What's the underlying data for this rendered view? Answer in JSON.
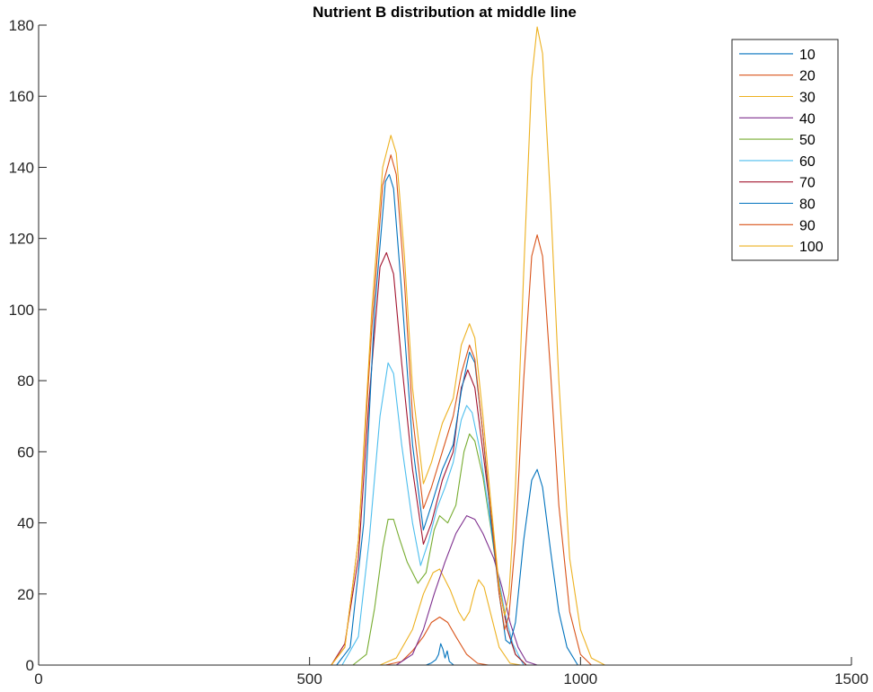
{
  "chart_data": {
    "type": "line",
    "title": "Nutrient B distribution at middle line",
    "xlabel": "",
    "ylabel": "",
    "xlim": [
      0,
      1500
    ],
    "ylim": [
      0,
      180
    ],
    "xticks": [
      0,
      500,
      1000,
      1500
    ],
    "yticks": [
      0,
      20,
      40,
      60,
      80,
      100,
      120,
      140,
      160,
      180
    ],
    "grid": false,
    "legend_position": "top-right",
    "series": [
      {
        "name": "10",
        "color": "#0072BD",
        "points": [
          [
            0,
            0
          ],
          [
            715,
            0
          ],
          [
            725,
            0.6
          ],
          [
            733,
            1.5
          ],
          [
            738,
            3
          ],
          [
            742,
            6
          ],
          [
            746,
            4.5
          ],
          [
            750,
            2
          ],
          [
            754,
            4
          ],
          [
            758,
            1
          ],
          [
            766,
            0
          ],
          [
            1500,
            0
          ]
        ]
      },
      {
        "name": "20",
        "color": "#D95319",
        "points": [
          [
            0,
            0
          ],
          [
            640,
            0
          ],
          [
            670,
            1
          ],
          [
            690,
            4
          ],
          [
            710,
            8
          ],
          [
            725,
            12
          ],
          [
            740,
            13.5
          ],
          [
            755,
            12
          ],
          [
            770,
            8
          ],
          [
            790,
            3
          ],
          [
            810,
            0.5
          ],
          [
            830,
            0
          ],
          [
            1500,
            0
          ]
        ]
      },
      {
        "name": "30",
        "color": "#EDB120",
        "points": [
          [
            0,
            0
          ],
          [
            630,
            0
          ],
          [
            660,
            2
          ],
          [
            690,
            10
          ],
          [
            710,
            20
          ],
          [
            728,
            26
          ],
          [
            740,
            27
          ],
          [
            760,
            21
          ],
          [
            775,
            15
          ],
          [
            785,
            12.5
          ],
          [
            795,
            15
          ],
          [
            805,
            21
          ],
          [
            812,
            24
          ],
          [
            822,
            22
          ],
          [
            835,
            14
          ],
          [
            850,
            5
          ],
          [
            870,
            0.5
          ],
          [
            890,
            0
          ],
          [
            1500,
            0
          ]
        ]
      },
      {
        "name": "40",
        "color": "#7E2F8E",
        "points": [
          [
            0,
            0
          ],
          [
            660,
            0
          ],
          [
            690,
            3
          ],
          [
            710,
            10
          ],
          [
            730,
            20
          ],
          [
            750,
            29
          ],
          [
            770,
            37
          ],
          [
            790,
            42
          ],
          [
            805,
            41
          ],
          [
            820,
            37
          ],
          [
            840,
            30
          ],
          [
            855,
            22
          ],
          [
            870,
            12
          ],
          [
            885,
            5
          ],
          [
            900,
            1
          ],
          [
            920,
            0
          ],
          [
            1500,
            0
          ]
        ]
      },
      {
        "name": "50",
        "color": "#77AC30",
        "points": [
          [
            0,
            0
          ],
          [
            580,
            0
          ],
          [
            605,
            3
          ],
          [
            620,
            16
          ],
          [
            635,
            33
          ],
          [
            645,
            41
          ],
          [
            655,
            41
          ],
          [
            665,
            36
          ],
          [
            680,
            29
          ],
          [
            700,
            23
          ],
          [
            715,
            26
          ],
          [
            730,
            38
          ],
          [
            740,
            42
          ],
          [
            755,
            40
          ],
          [
            770,
            45
          ],
          [
            785,
            60
          ],
          [
            795,
            65
          ],
          [
            805,
            63
          ],
          [
            820,
            53
          ],
          [
            835,
            38
          ],
          [
            850,
            22
          ],
          [
            865,
            10
          ],
          [
            880,
            3
          ],
          [
            900,
            0
          ],
          [
            1500,
            0
          ]
        ]
      },
      {
        "name": "60",
        "color": "#4DBEEE",
        "points": [
          [
            0,
            0
          ],
          [
            560,
            0
          ],
          [
            590,
            8
          ],
          [
            610,
            35
          ],
          [
            630,
            70
          ],
          [
            645,
            85
          ],
          [
            655,
            82
          ],
          [
            670,
            62
          ],
          [
            690,
            40
          ],
          [
            705,
            28
          ],
          [
            720,
            35
          ],
          [
            735,
            44
          ],
          [
            750,
            50
          ],
          [
            765,
            57
          ],
          [
            780,
            69
          ],
          [
            790,
            73
          ],
          [
            800,
            71
          ],
          [
            815,
            60
          ],
          [
            830,
            44
          ],
          [
            845,
            28
          ],
          [
            860,
            15
          ],
          [
            875,
            6
          ],
          [
            895,
            0
          ],
          [
            1500,
            0
          ]
        ]
      },
      {
        "name": "70",
        "color": "#A2142F",
        "points": [
          [
            0,
            0
          ],
          [
            540,
            0
          ],
          [
            565,
            6
          ],
          [
            590,
            30
          ],
          [
            610,
            75
          ],
          [
            630,
            112
          ],
          [
            642,
            116
          ],
          [
            655,
            110
          ],
          [
            670,
            85
          ],
          [
            690,
            55
          ],
          [
            710,
            34
          ],
          [
            725,
            40
          ],
          [
            745,
            52
          ],
          [
            765,
            60
          ],
          [
            780,
            78
          ],
          [
            792,
            83
          ],
          [
            805,
            78
          ],
          [
            820,
            60
          ],
          [
            835,
            42
          ],
          [
            850,
            22
          ],
          [
            865,
            10
          ],
          [
            880,
            3
          ],
          [
            900,
            0
          ],
          [
            1500,
            0
          ]
        ]
      },
      {
        "name": "80",
        "color": "#0072BD",
        "points": [
          [
            0,
            0
          ],
          [
            550,
            0
          ],
          [
            575,
            5
          ],
          [
            600,
            40
          ],
          [
            620,
            100
          ],
          [
            640,
            136
          ],
          [
            647,
            138
          ],
          [
            655,
            134
          ],
          [
            670,
            105
          ],
          [
            690,
            62
          ],
          [
            710,
            38
          ],
          [
            725,
            45
          ],
          [
            745,
            55
          ],
          [
            765,
            62
          ],
          [
            780,
            77
          ],
          [
            795,
            88
          ],
          [
            805,
            85
          ],
          [
            820,
            65
          ],
          [
            835,
            40
          ],
          [
            850,
            20
          ],
          [
            862,
            7
          ],
          [
            870,
            6
          ],
          [
            880,
            12
          ],
          [
            895,
            35
          ],
          [
            910,
            52
          ],
          [
            920,
            55
          ],
          [
            930,
            50
          ],
          [
            945,
            32
          ],
          [
            960,
            15
          ],
          [
            975,
            5
          ],
          [
            995,
            0
          ],
          [
            1500,
            0
          ]
        ]
      },
      {
        "name": "90",
        "color": "#D95319",
        "points": [
          [
            0,
            0
          ],
          [
            540,
            0
          ],
          [
            565,
            5
          ],
          [
            590,
            35
          ],
          [
            615,
            95
          ],
          [
            635,
            135
          ],
          [
            650,
            143.5
          ],
          [
            660,
            138
          ],
          [
            675,
            108
          ],
          [
            690,
            70
          ],
          [
            710,
            44
          ],
          [
            725,
            50
          ],
          [
            745,
            60
          ],
          [
            765,
            70
          ],
          [
            780,
            82
          ],
          [
            795,
            90
          ],
          [
            805,
            86
          ],
          [
            820,
            65
          ],
          [
            835,
            42
          ],
          [
            850,
            20
          ],
          [
            860,
            10
          ],
          [
            868,
            14
          ],
          [
            880,
            35
          ],
          [
            895,
            80
          ],
          [
            910,
            115
          ],
          [
            920,
            121
          ],
          [
            930,
            115
          ],
          [
            945,
            82
          ],
          [
            960,
            45
          ],
          [
            980,
            15
          ],
          [
            1000,
            3
          ],
          [
            1020,
            0
          ],
          [
            1500,
            0
          ]
        ]
      },
      {
        "name": "100",
        "color": "#EDB120",
        "points": [
          [
            0,
            0
          ],
          [
            540,
            0
          ],
          [
            565,
            5
          ],
          [
            590,
            35
          ],
          [
            615,
            100
          ],
          [
            635,
            140
          ],
          [
            650,
            149
          ],
          [
            660,
            144
          ],
          [
            675,
            115
          ],
          [
            690,
            78
          ],
          [
            710,
            51
          ],
          [
            725,
            57
          ],
          [
            745,
            68
          ],
          [
            765,
            75
          ],
          [
            780,
            90
          ],
          [
            795,
            96
          ],
          [
            805,
            92
          ],
          [
            820,
            70
          ],
          [
            835,
            45
          ],
          [
            850,
            22
          ],
          [
            860,
            14
          ],
          [
            868,
            20
          ],
          [
            880,
            50
          ],
          [
            895,
            110
          ],
          [
            910,
            165
          ],
          [
            920,
            179.5
          ],
          [
            930,
            172
          ],
          [
            945,
            130
          ],
          [
            960,
            80
          ],
          [
            980,
            30
          ],
          [
            1000,
            10
          ],
          [
            1020,
            2
          ],
          [
            1045,
            0
          ],
          [
            1500,
            0
          ]
        ]
      }
    ]
  }
}
